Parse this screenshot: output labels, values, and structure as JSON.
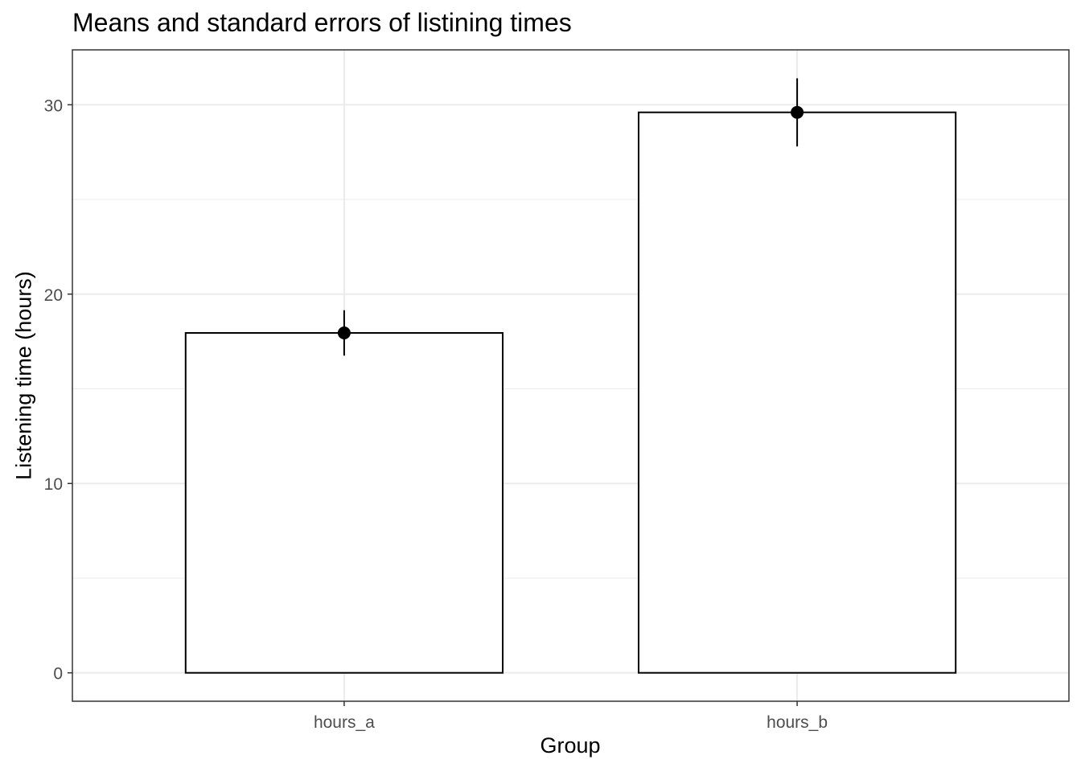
{
  "chart_data": {
    "type": "bar",
    "title": "Means and standard errors of listining times",
    "xlabel": "Group",
    "ylabel": "Listening time (hours)",
    "categories": [
      "hours_a",
      "hours_b"
    ],
    "values": [
      17.95,
      29.6
    ],
    "error_bars": {
      "lower": [
        16.75,
        27.8
      ],
      "upper": [
        19.15,
        31.4
      ]
    },
    "ylim": [
      -1.5,
      32.9
    ],
    "yticks": [
      0,
      10,
      20,
      30
    ],
    "grid": true,
    "theme_colors": {
      "bar_fill": "#ffffff",
      "bar_stroke": "#000000",
      "grid": "#ebebeb",
      "point": "#000000"
    }
  }
}
